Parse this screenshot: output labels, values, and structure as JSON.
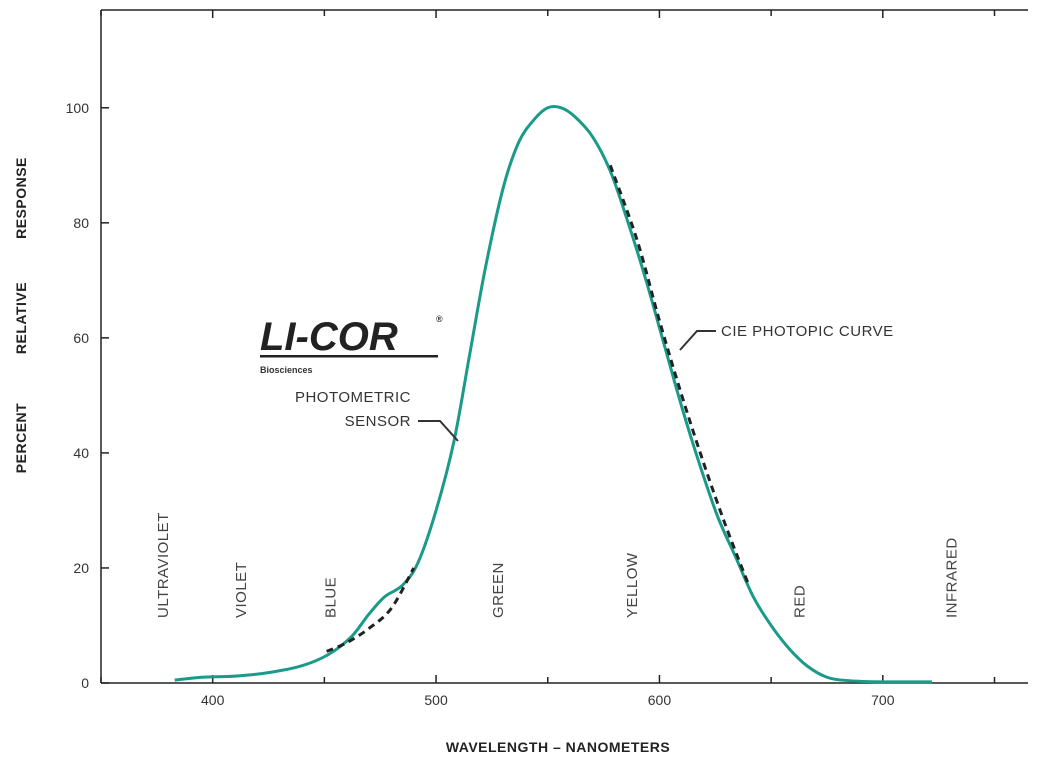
{
  "chart_data": {
    "type": "line",
    "title": "",
    "xlabel": "WAVELENGTH – NANOMETERS",
    "ylabel": [
      "PERCENT",
      "RELATIVE",
      "RESPONSE"
    ],
    "xlim": [
      350,
      765
    ],
    "ylim": [
      0,
      117
    ],
    "x_ticks": [
      400,
      500,
      600,
      700
    ],
    "y_ticks": [
      0,
      20,
      40,
      60,
      80,
      100
    ],
    "grid": false,
    "series": [
      {
        "name": "PHOTOMETRIC SENSOR",
        "color": "#1a9a88",
        "style": "solid",
        "points": [
          [
            383,
            0.5
          ],
          [
            395,
            1
          ],
          [
            410,
            1.2
          ],
          [
            425,
            1.8
          ],
          [
            440,
            3
          ],
          [
            452,
            5
          ],
          [
            462,
            8
          ],
          [
            470,
            12
          ],
          [
            477,
            15
          ],
          [
            485,
            17
          ],
          [
            492,
            21
          ],
          [
            500,
            30
          ],
          [
            508,
            42
          ],
          [
            515,
            57
          ],
          [
            522,
            72
          ],
          [
            530,
            86
          ],
          [
            537,
            94
          ],
          [
            544,
            98
          ],
          [
            550,
            100
          ],
          [
            556,
            100
          ],
          [
            562,
            98.5
          ],
          [
            570,
            95
          ],
          [
            578,
            89
          ],
          [
            586,
            80
          ],
          [
            594,
            70
          ],
          [
            602,
            59
          ],
          [
            610,
            48
          ],
          [
            618,
            38
          ],
          [
            626,
            29
          ],
          [
            634,
            22
          ],
          [
            642,
            15
          ],
          [
            650,
            10
          ],
          [
            658,
            6
          ],
          [
            666,
            3
          ],
          [
            675,
            1
          ],
          [
            685,
            0.4
          ],
          [
            700,
            0.2
          ],
          [
            722,
            0.2
          ]
        ]
      },
      {
        "name": "CIE PHOTOPIC CURVE",
        "color": "#222222",
        "style": "dashed",
        "points": [
          [
            451,
            5.5
          ],
          [
            460,
            7
          ],
          [
            470,
            9.5
          ],
          [
            480,
            13
          ],
          [
            490,
            20
          ],
          [
            578,
            90
          ],
          [
            590,
            77
          ],
          [
            600,
            63
          ],
          [
            610,
            50
          ],
          [
            620,
            38
          ],
          [
            630,
            27
          ],
          [
            640,
            17
          ]
        ]
      }
    ],
    "bands": [
      {
        "label": "ULTRAVIOLET",
        "x": 380
      },
      {
        "label": "VIOLET",
        "x": 415
      },
      {
        "label": "BLUE",
        "x": 455
      },
      {
        "label": "GREEN",
        "x": 530
      },
      {
        "label": "YELLOW",
        "x": 590
      },
      {
        "label": "RED",
        "x": 665
      },
      {
        "label": "INFRARED",
        "x": 733
      }
    ],
    "annotations": {
      "cie_label": "CIE PHOTOPIC CURVE",
      "sensor_label_line1": "PHOTOMETRIC",
      "sensor_label_line2": "SENSOR"
    }
  },
  "logo": {
    "text": "LI-COR",
    "registered": "®",
    "sub": "Biosciences"
  }
}
